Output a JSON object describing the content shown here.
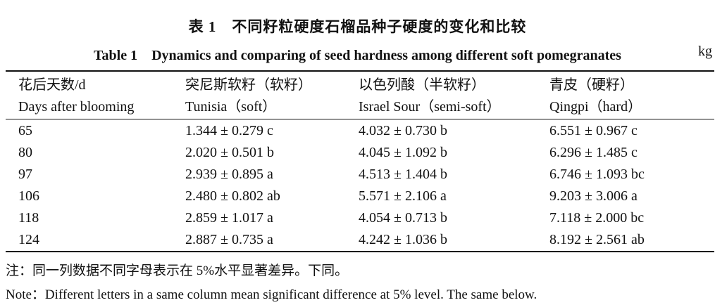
{
  "title_cn": "表 1　不同籽粒硬度石榴品种子硬度的变化和比较",
  "title_en": "Table 1　Dynamics and comparing of seed hardness among different soft pomegranates",
  "unit": "kg",
  "headers_cn": [
    "花后天数/d",
    "突尼斯软籽（软籽）",
    "以色列酸（半软籽）",
    "青皮（硬籽）"
  ],
  "headers_en": [
    "Days after blooming",
    "Tunisia（soft）",
    "Israel Sour（semi-soft）",
    "Qingpi（hard）"
  ],
  "rows": [
    [
      "65",
      "1.344 ± 0.279 c",
      "4.032 ± 0.730 b",
      "6.551 ± 0.967 c"
    ],
    [
      "80",
      "2.020 ± 0.501 b",
      "4.045 ± 1.092 b",
      "6.296 ± 1.485 c"
    ],
    [
      "97",
      "2.939 ± 0.895 a",
      "4.513 ± 1.404 b",
      "6.746 ± 1.093 bc"
    ],
    [
      "106",
      "2.480 ± 0.802 ab",
      "5.571 ± 2.106 a",
      "9.203 ± 3.006 a"
    ],
    [
      "118",
      "2.859 ± 1.017 a",
      "4.054 ± 0.713 b",
      "7.118 ± 2.000 bc"
    ],
    [
      "124",
      "2.887 ± 0.735 a",
      "4.242 ± 1.036 b",
      "8.192 ± 2.561 ab"
    ]
  ],
  "note_cn": "注：同一列数据不同字母表示在 5%水平显著差异。下同。",
  "note_en": "Note：Different letters in a same column mean significant difference at 5% level. The same below."
}
